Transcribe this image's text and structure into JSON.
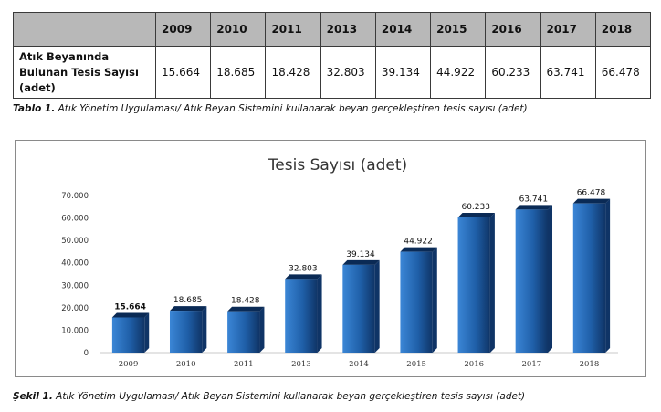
{
  "table": {
    "row_header": "Atık Beyanında Bulunan Tesis Sayısı (adet)",
    "years": [
      "2009",
      "2010",
      "2011",
      "2013",
      "2014",
      "2015",
      "2016",
      "2017",
      "2018"
    ],
    "values": [
      "15.664",
      "18.685",
      "18.428",
      "32.803",
      "39.134",
      "44.922",
      "60.233",
      "63.741",
      "66.478"
    ],
    "caption_lead": "Tablo 1.",
    "caption_text": " Atık Yönetim Uygulaması/ Atık Beyan Sistemini kullanarak beyan gerçekleştiren tesis sayısı (adet)"
  },
  "figure": {
    "caption_lead": "Şekil 1.",
    "caption_text": " Atık Yönetim Uygulaması/ Atık Beyan Sistemini kullanarak beyan gerçekleştiren tesis sayısı (adet)"
  },
  "chart_data": {
    "type": "bar",
    "title": "Tesis Sayısı (adet)",
    "categories": [
      "2009",
      "2010",
      "2011",
      "2013",
      "2014",
      "2015",
      "2016",
      "2017",
      "2018"
    ],
    "values": [
      15664,
      18685,
      18428,
      32803,
      39134,
      44922,
      60233,
      63741,
      66478
    ],
    "data_labels": [
      "15.664",
      "18.685",
      "18.428",
      "32.803",
      "39.134",
      "44.922",
      "60.233",
      "63.741",
      "66.478"
    ],
    "y_ticks": [
      "0",
      "10.000",
      "20.000",
      "30.000",
      "40.000",
      "50.000",
      "60.000",
      "70.000"
    ],
    "ylim": [
      0,
      70000
    ],
    "grid": false,
    "legend": "none",
    "bar_color": "#1f5fa8",
    "bar_color_dark": "#0f3466",
    "bar_color_light": "#3b86d6"
  }
}
